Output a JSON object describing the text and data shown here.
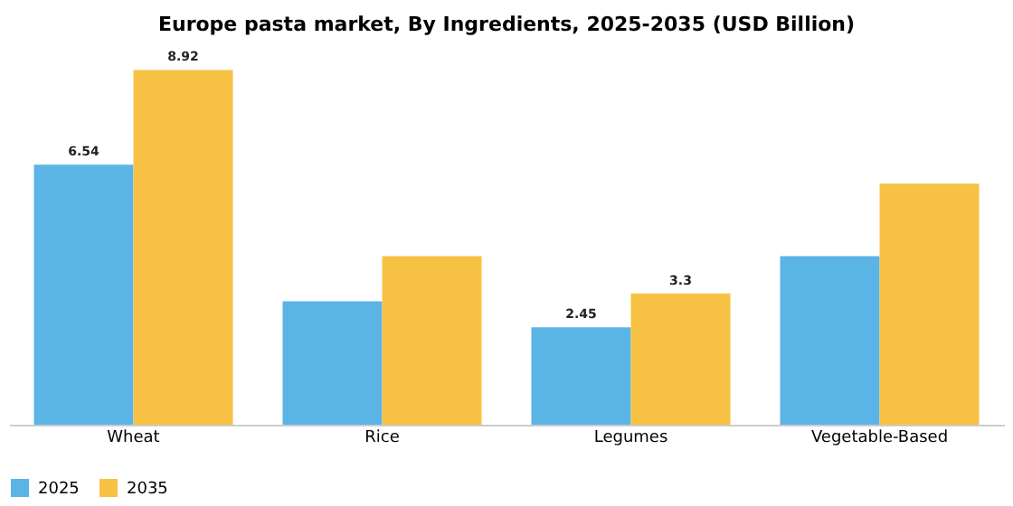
{
  "chart_data": {
    "type": "bar",
    "title": "Europe pasta market, By Ingredients, 2025-2035 (USD Billion)",
    "categories": [
      "Wheat",
      "Rice",
      "Legumes",
      "Vegetable-Based"
    ],
    "series": [
      {
        "name": "2025",
        "color": "#5ab4e6",
        "values": [
          6.54,
          3.1,
          2.45,
          4.24
        ],
        "value_labels": [
          "6.54",
          null,
          "2.45",
          null
        ]
      },
      {
        "name": "2035",
        "color": "#f7c244",
        "values": [
          8.92,
          4.24,
          3.3,
          6.06
        ],
        "value_labels": [
          "8.92",
          null,
          "3.3",
          null
        ]
      }
    ],
    "legend": "bottom",
    "grid": false
  }
}
